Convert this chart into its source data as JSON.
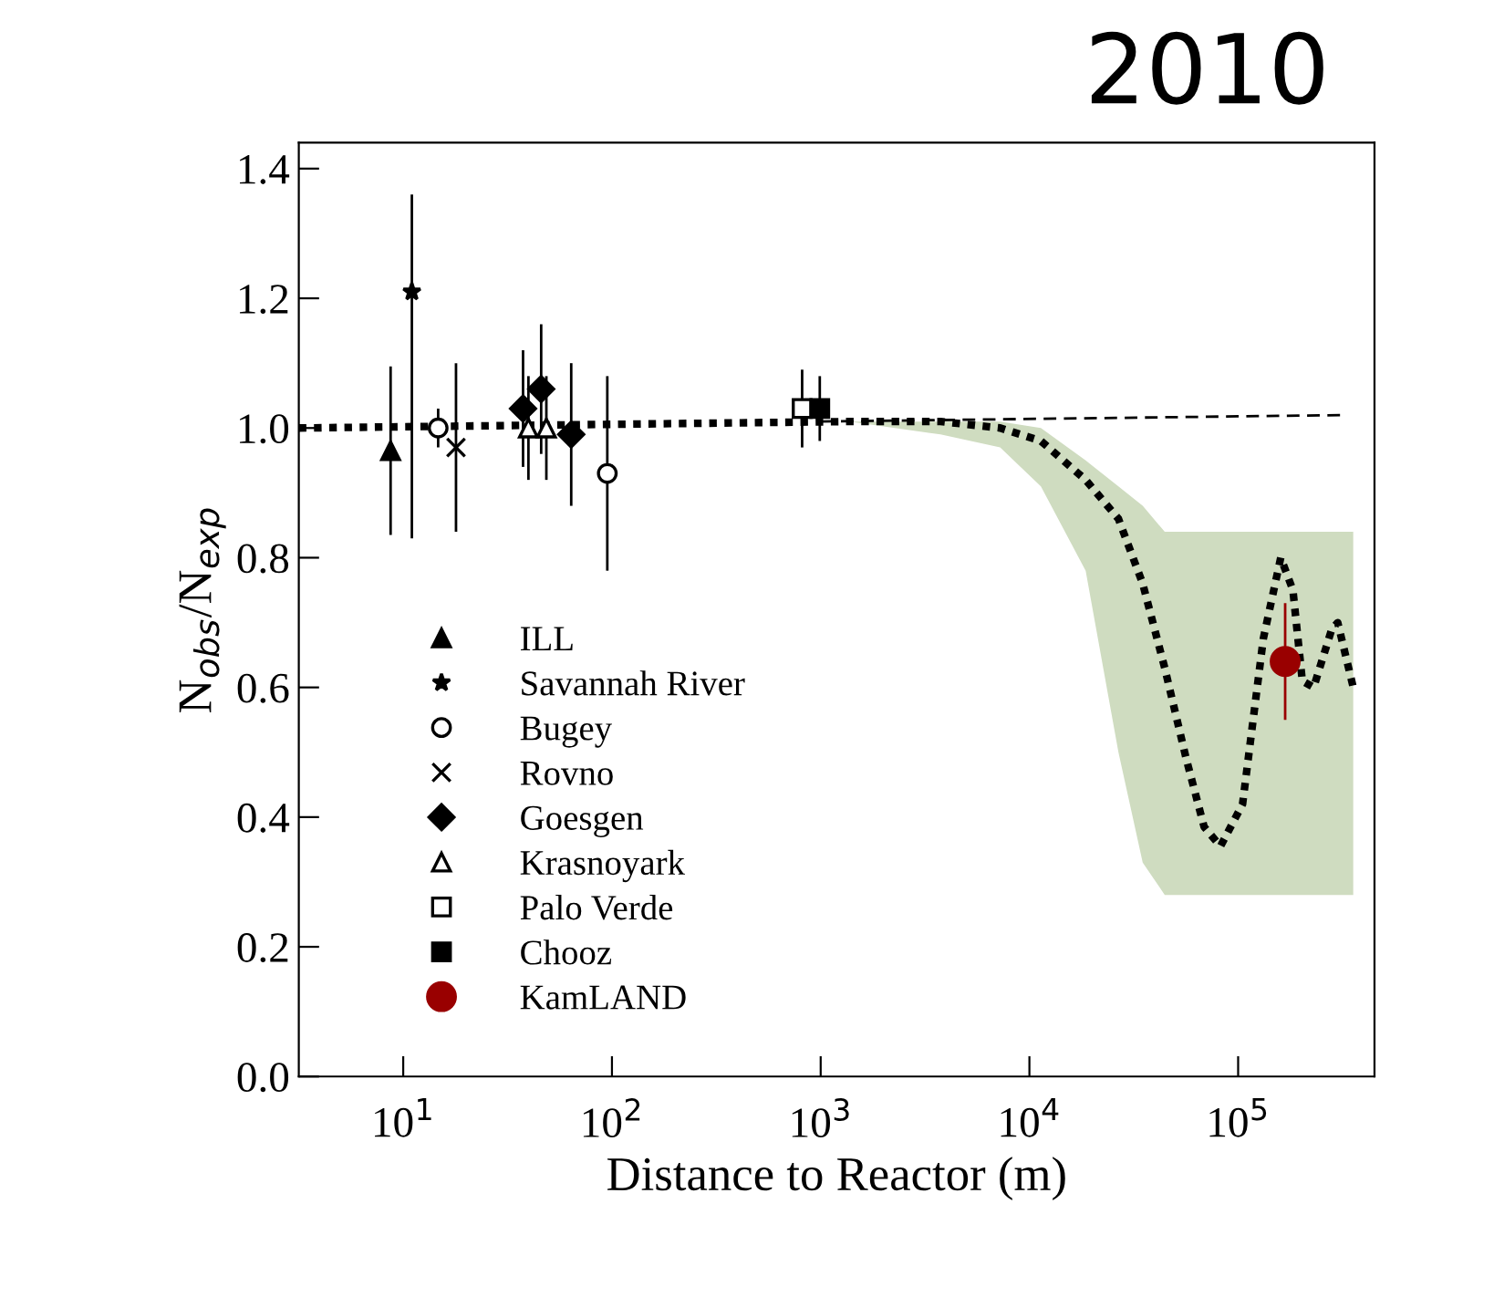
{
  "chart_data": {
    "type": "scatter",
    "xlabel": "Distance to Reactor (m)",
    "ylabel": "N$_{obs}$/N$_{exp}$",
    "annotations": [
      "2010"
    ],
    "log": "x",
    "xlim": [
      3.16,
      450000
    ],
    "xticks": [
      {
        "value": 10,
        "label": "10$^{1}$"
      },
      {
        "value": 100,
        "label": "10$^{2}$"
      },
      {
        "value": 1000,
        "label": "10$^{3}$"
      },
      {
        "value": 10000,
        "label": "10$^{4}$"
      },
      {
        "value": 100000,
        "label": "10$^{5}$"
      }
    ],
    "ylim": [
      0,
      1.44
    ],
    "yticks": [
      {
        "value": 0,
        "label": "0.0"
      },
      {
        "value": 0.2,
        "label": "0.2"
      },
      {
        "value": 0.4,
        "label": "0.4"
      },
      {
        "value": 0.6,
        "label": "0.6"
      },
      {
        "value": 0.8,
        "label": "0.8"
      },
      {
        "value": 1.0,
        "label": "1.0"
      },
      {
        "value": 1.2,
        "label": "1.2"
      },
      {
        "value": 1.4,
        "label": "1.4"
      }
    ],
    "grid": false,
    "legend": "lower left",
    "series": [
      {
        "type": "line",
        "color": "#000000",
        "marker": "none",
        "line_style": "dotted",
        "x": [
          3.16,
          1380,
          3750,
          7240,
          11350,
          18600,
          26700,
          34900,
          44500,
          56400,
          68700,
          82300,
          105000,
          132000,
          160000,
          183000,
          203000,
          230000,
          281000,
          300000,
          356000
        ],
        "values": [
          1.0,
          1.01,
          1.01,
          1.0,
          0.98,
          0.92,
          0.86,
          0.76,
          0.63,
          0.49,
          0.385,
          0.355,
          0.42,
          0.675,
          0.8,
          0.75,
          0.61,
          0.6,
          0.69,
          0.7,
          0.6
        ],
        "lower": [
          null,
          1.01,
          0.99,
          0.97,
          0.91,
          0.78,
          0.5,
          0.33,
          0.28,
          0.28,
          0.28,
          0.28,
          0.28,
          0.28,
          0.28,
          0.28,
          0.28,
          0.28,
          0.28,
          0.28,
          0.28
        ],
        "upper": [
          null,
          1.01,
          1.01,
          1.01,
          1.0,
          0.95,
          0.91,
          0.88,
          0.84,
          0.84,
          0.84,
          0.84,
          0.84,
          0.84,
          0.84,
          0.84,
          0.84,
          0.84,
          0.84,
          0.84,
          0.84
        ]
      },
      {
        "type": "line",
        "color": "#000000",
        "marker": "none",
        "line_style": "dashed",
        "x": [
          1000,
          323000
        ],
        "values": [
          1.01,
          1.02
        ]
      },
      {
        "name": "ILL",
        "color": "#000000",
        "marker": "triangle",
        "x": [
          8.7
        ],
        "values": [
          0.965
        ],
        "errors": [
          0.13
        ]
      },
      {
        "name": "Savannah River",
        "color": "#000000",
        "marker": "star",
        "x": [
          11
        ],
        "values": [
          1.21
        ],
        "errors": [
          [
            0.83,
            1.36
          ]
        ]
      },
      {
        "name": "Bugey",
        "color": "#ffffff",
        "marker": "circle",
        "x": [
          14.7,
          95
        ],
        "values": [
          1.0,
          0.93
        ],
        "errors": [
          0.03,
          0.15
        ]
      },
      {
        "name": "Rovno",
        "color": "#000000",
        "marker": "cross",
        "x": [
          17.9
        ],
        "values": [
          0.97
        ],
        "errors": [
          0.13
        ]
      },
      {
        "name": "Goesgen",
        "color": "#000000",
        "marker": "diamond",
        "x": [
          37.5,
          45.8,
          63.8
        ],
        "values": [
          1.03,
          1.06,
          0.99
        ],
        "errors": [
          0.09,
          0.1,
          0.11
        ]
      },
      {
        "name": "Krasnoyark",
        "color": "#ffffff",
        "marker": "triangle",
        "x": [
          39.8,
          48.5
        ],
        "values": [
          1.0,
          1.0
        ],
        "errors": [
          0.08,
          0.08
        ]
      },
      {
        "name": "Palo Verde",
        "color": "#ffffff",
        "marker": "square",
        "x": [
          815
        ],
        "values": [
          1.03
        ],
        "errors": [
          0.06
        ]
      },
      {
        "name": "Chooz",
        "color": "#000000",
        "marker": "square",
        "x": [
          990
        ],
        "values": [
          1.03
        ],
        "errors": [
          0.05
        ]
      },
      {
        "name": "KamLAND",
        "color": "#990000",
        "marker": "circle",
        "x": [
          168000
        ],
        "values": [
          0.64
        ],
        "errors": [
          0.09
        ]
      }
    ]
  }
}
